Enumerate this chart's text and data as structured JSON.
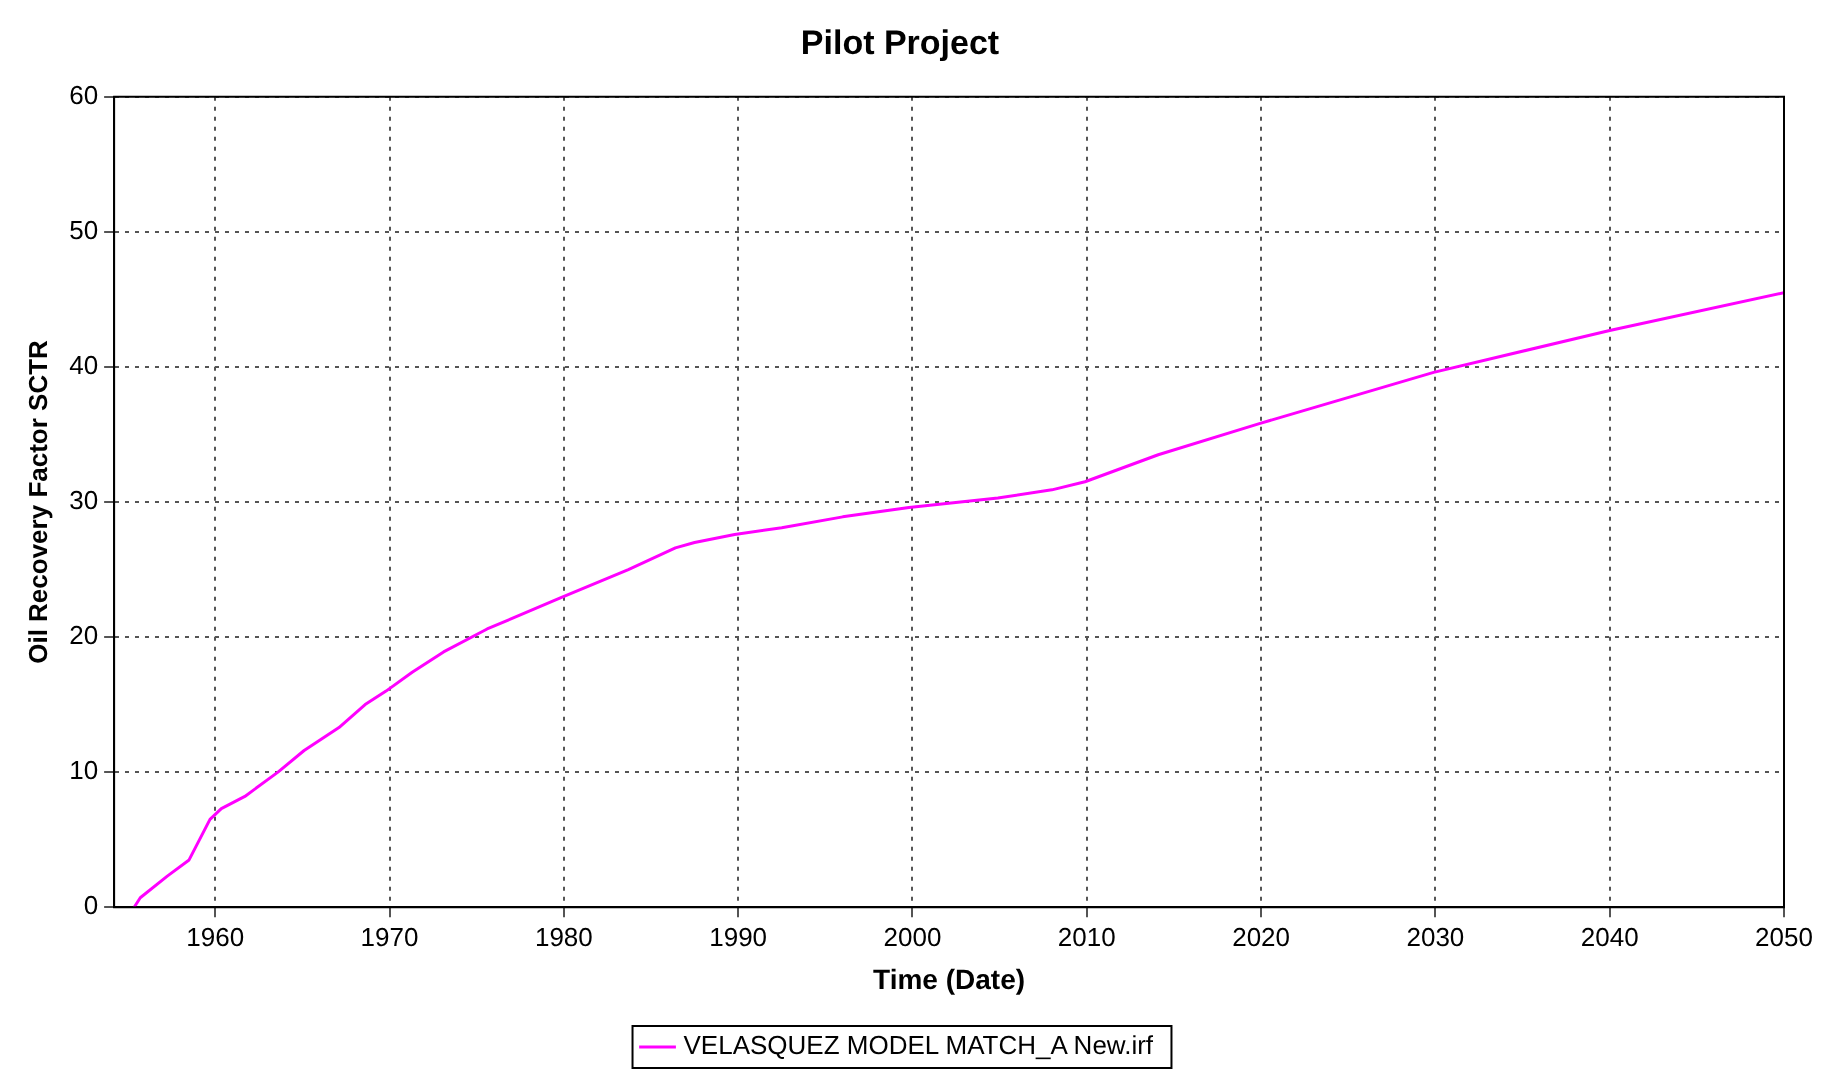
{
  "chart_data": {
    "type": "line",
    "title": "Pilot Project",
    "xlabel": "Time (Date)",
    "ylabel": "Oil Recovery Factor SCTR",
    "xlim": [
      1954.2,
      2050
    ],
    "xticks": [
      1960,
      1970,
      1980,
      1990,
      2000,
      2010,
      2020,
      2030,
      2040,
      2050
    ],
    "ylim": [
      0,
      60
    ],
    "yticks": [
      0,
      10,
      20,
      30,
      40,
      50,
      60
    ],
    "grid": true,
    "legend": "bottom",
    "marker": "none",
    "line_style": "solid",
    "series": [
      {
        "name": "VELASQUEZ MODEL MATCH_A New.irf",
        "color": "#ff00ff",
        "x": [
          1955.35,
          1955.7,
          1957.25,
          1958.5,
          1959.7,
          1960.35,
          1961.7,
          1963.6,
          1965.1,
          1967.1,
          1968.6,
          1969.8,
          1971.3,
          1973.1,
          1975.6,
          1979.8,
          1983.7,
          1986.4,
          1987.5,
          1989.8,
          1992.5,
          1996.0,
          1999.8,
          2004.9,
          2008.0,
          2009.9,
          2014.1,
          2019.9,
          2029.9,
          2040.0,
          2050
        ],
        "values": [
          0,
          0.7,
          2.3,
          3.5,
          6.5,
          7.3,
          8.2,
          10.0,
          11.6,
          13.3,
          15.0,
          16.0,
          17.4,
          18.9,
          20.6,
          22.9,
          25.0,
          26.6,
          27.0,
          27.6,
          28.1,
          28.9,
          29.6,
          30.3,
          30.9,
          31.5,
          33.5,
          35.8,
          39.6,
          42.7,
          45.5
        ]
      }
    ]
  }
}
